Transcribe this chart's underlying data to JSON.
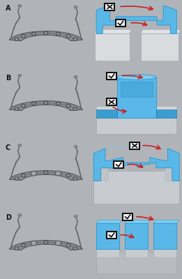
{
  "rows": [
    "A",
    "B",
    "C",
    "D"
  ],
  "bg_color": "#b0b4b8",
  "left_bg": "#f0eeec",
  "right_bg": "#7a8490",
  "label_color": "#000000",
  "label_fontsize": 7,
  "label_fontweight": "bold",
  "blue": "#5ab8e8",
  "blue_mid": "#3a9ed0",
  "blue_dark": "#2070a0",
  "blue_light": "#80ccf0",
  "gray_base": "#c8ccd0",
  "gray_base2": "#d8dcde",
  "gray_shadow": "#a0a8b0",
  "white": "#ffffff",
  "arrow_color": "#cc2020",
  "figsize": [
    2.61,
    4.0
  ],
  "dpi": 100,
  "row_configs": [
    {
      "check_top": false,
      "check_bot": true,
      "shape": "arch"
    },
    {
      "check_top": true,
      "check_bot": false,
      "shape": "cylinder"
    },
    {
      "check_top": false,
      "check_bot": true,
      "shape": "wide_arch"
    },
    {
      "check_top": true,
      "check_bot": true,
      "shape": "segments"
    }
  ]
}
